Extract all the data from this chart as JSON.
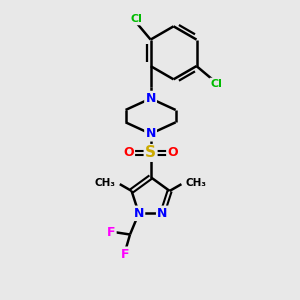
{
  "background_color": "#e8e8e8",
  "atom_colors": {
    "N": "#0000ff",
    "Cl": "#00bb00",
    "F": "#ff00ff",
    "S": "#ccaa00",
    "O": "#ff0000",
    "C": "#000000"
  },
  "bond_width": 1.8,
  "font_size": 9,
  "figsize": [
    3.0,
    3.0
  ],
  "dpi": 100,
  "xlim": [
    0,
    10
  ],
  "ylim": [
    0,
    10
  ]
}
